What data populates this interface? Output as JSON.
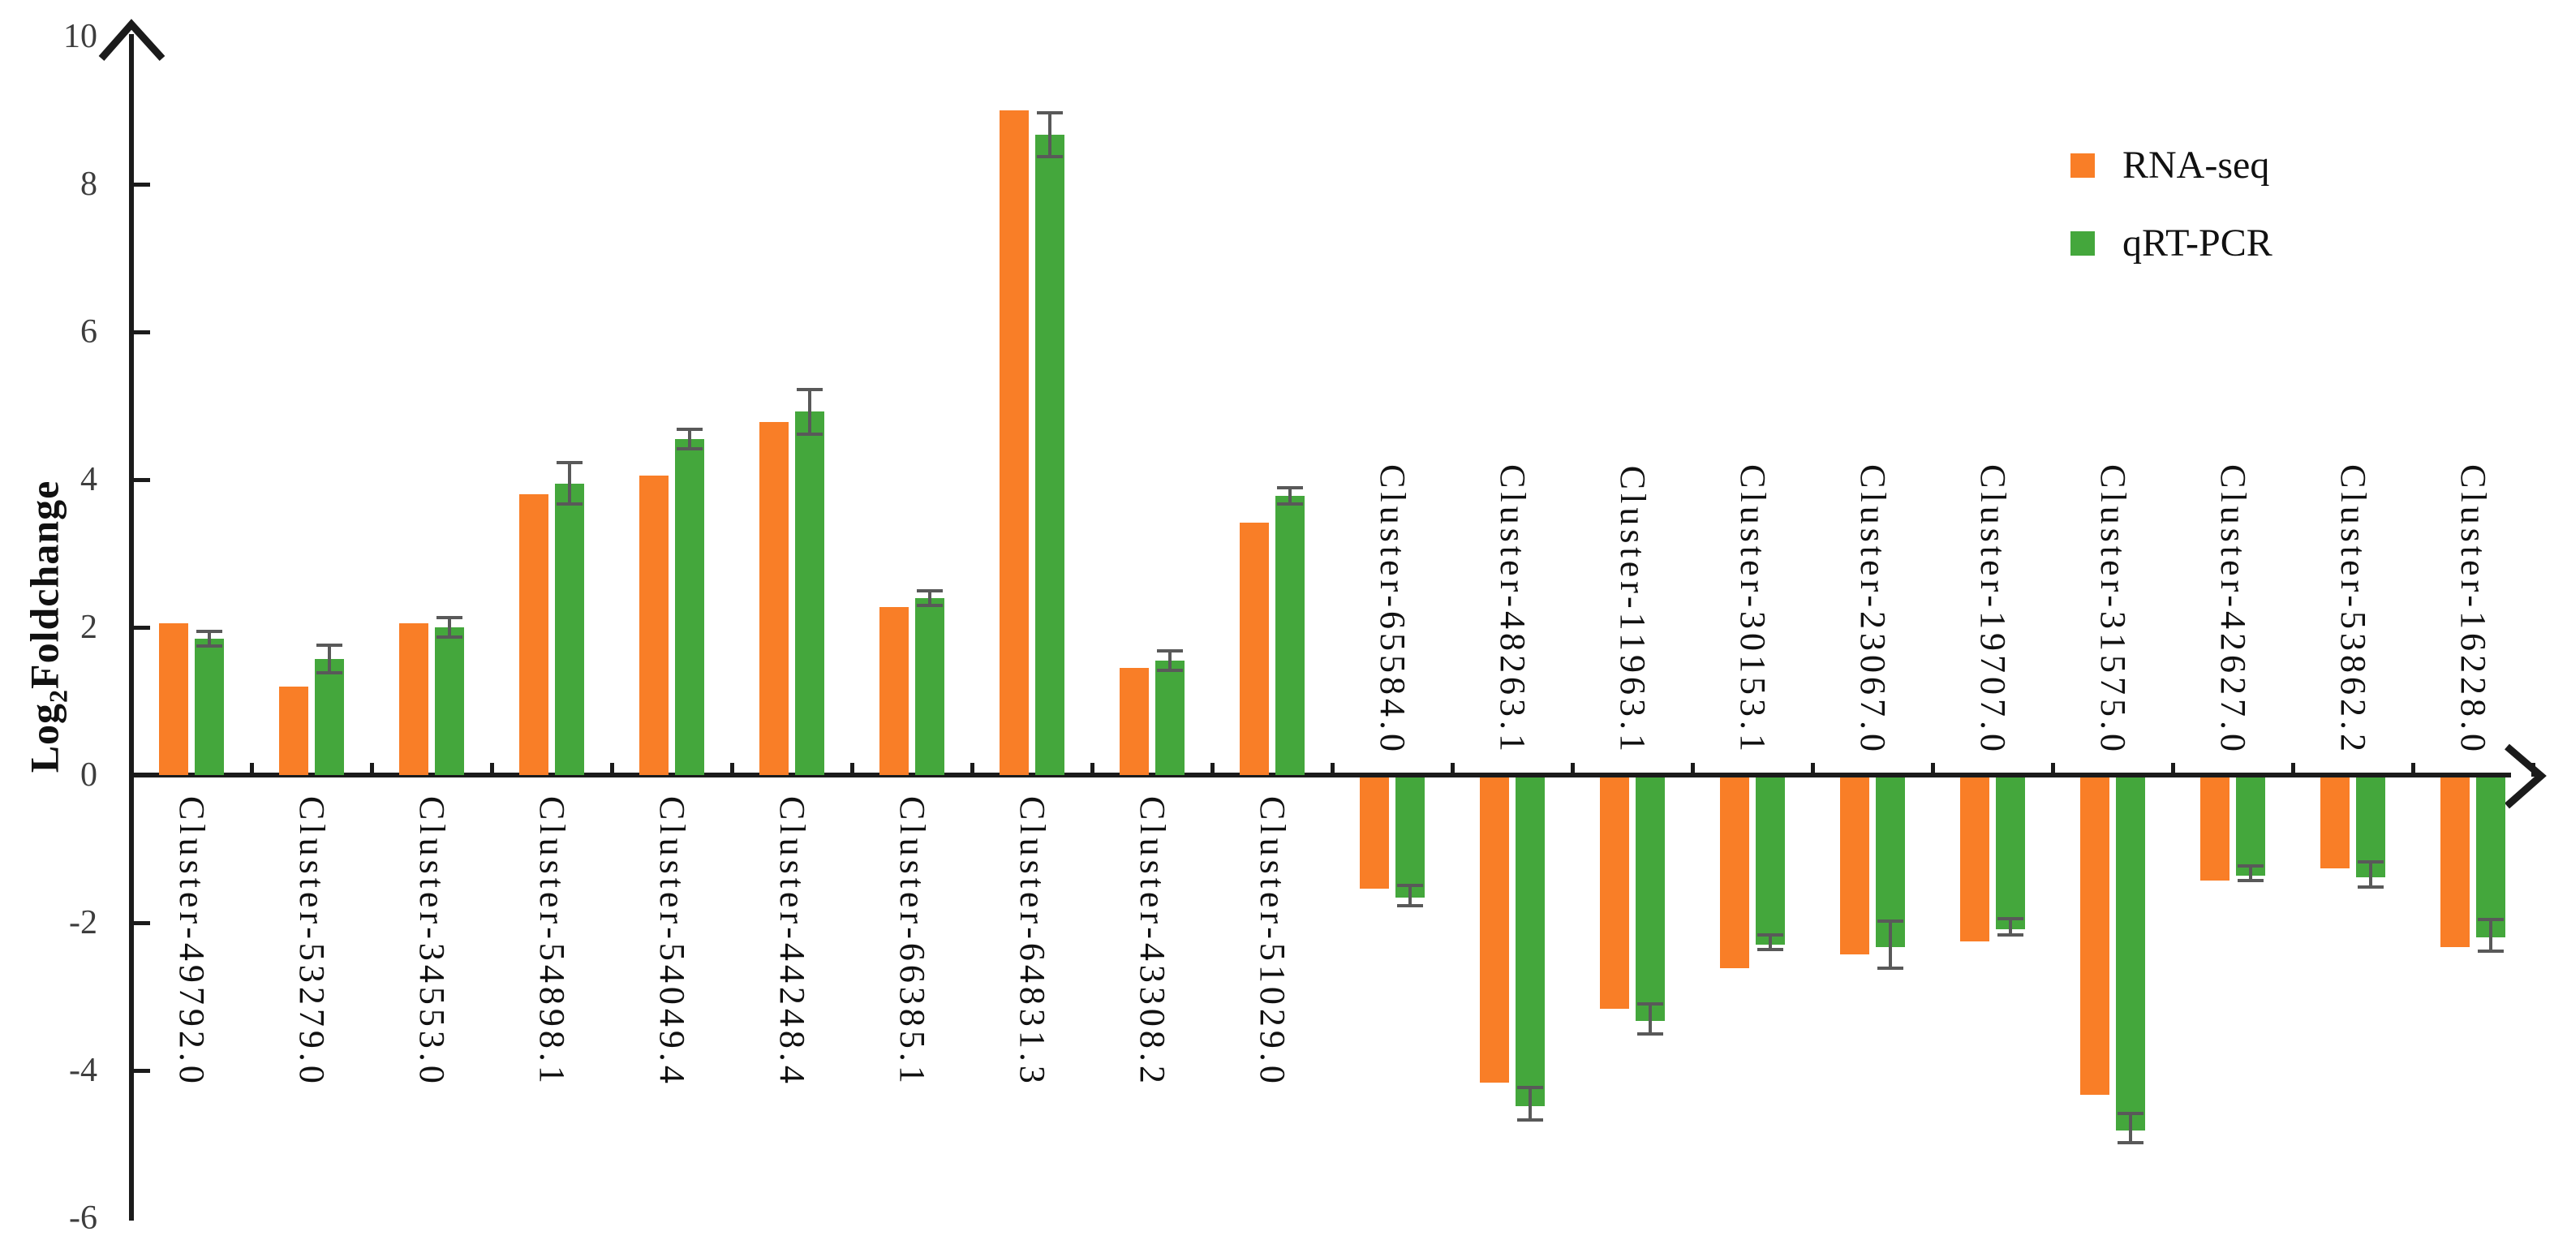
{
  "chart_data": {
    "type": "bar",
    "title": "",
    "ylabel": {
      "prefix": "Log",
      "subscript": "2",
      "suffix": "Foldchange"
    },
    "ylim": [
      -6,
      10
    ],
    "ytick_step": 2,
    "ytick_labels": [
      "10",
      "8",
      "6",
      "4",
      "2",
      "0",
      "-2",
      "-4",
      "-6"
    ],
    "ytick_label_values": [
      10,
      8,
      6,
      4,
      2,
      0,
      -2,
      -4,
      -6
    ],
    "ytick_marks": [
      8,
      6,
      4,
      2,
      -2,
      -4
    ],
    "grid": false,
    "legend_position": "top-right",
    "categories": [
      "Cluster-49792.0",
      "Cluster-53279.0",
      "Cluster-34553.0",
      "Cluster-54898.1",
      "Cluster-54049.4",
      "Cluster-44248.4",
      "Cluster-66385.1",
      "Cluster-64831.3",
      "Cluster-43308.2",
      "Cluster-51029.0",
      "Cluster-65584.0",
      "Cluster-48263.1",
      "Cluster-11963.1",
      "Cluster-30153.1",
      "Cluster-23067.0",
      "Cluster-19707.0",
      "Cluster-31575.0",
      "Cluster-42627.0",
      "Cluster-53862.2",
      "Cluster-16228.0"
    ],
    "series": [
      {
        "name": "RNA-seq",
        "color": "#F97E27",
        "values": [
          2.05,
          1.2,
          2.05,
          3.8,
          4.05,
          4.78,
          2.27,
          9.0,
          1.45,
          3.42,
          -1.5,
          -4.13,
          -3.13,
          -2.58,
          -2.4,
          -2.22,
          -4.3,
          -1.4,
          -1.23,
          -2.3
        ]
      },
      {
        "name": "qRT-PCR",
        "color": "#44A73C",
        "values": [
          1.85,
          1.57,
          2.0,
          3.95,
          4.55,
          4.92,
          2.4,
          8.67,
          1.55,
          3.78,
          -1.63,
          -4.45,
          -3.3,
          -2.26,
          -2.3,
          -2.06,
          -4.78,
          -1.33,
          -1.35,
          -2.17
        ],
        "errors": [
          0.1,
          0.19,
          0.13,
          0.28,
          0.13,
          0.3,
          0.1,
          0.3,
          0.13,
          0.11,
          0.14,
          0.22,
          0.2,
          0.1,
          0.32,
          0.11,
          0.2,
          0.1,
          0.17,
          0.21
        ]
      }
    ],
    "error_bar_color": "#595959",
    "axis_color": "#1b1b1b"
  }
}
